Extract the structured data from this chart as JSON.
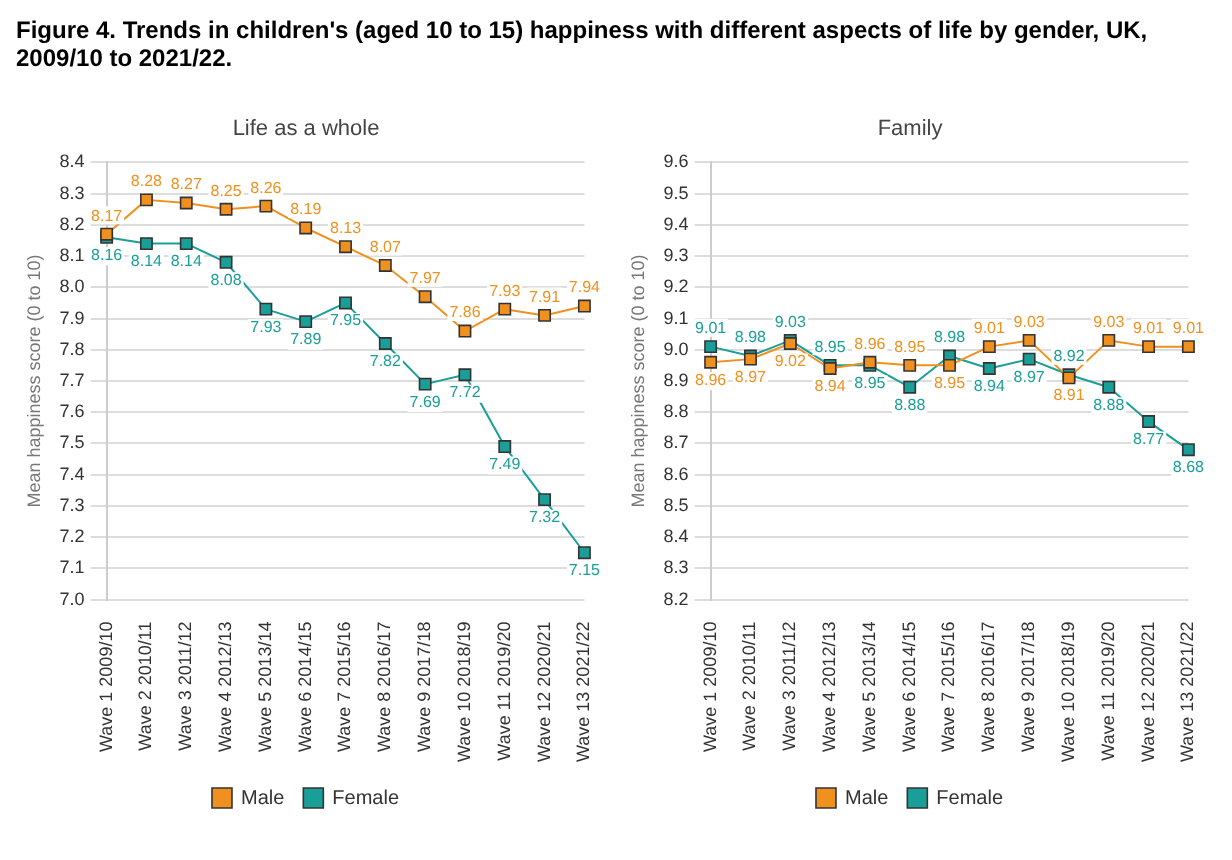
{
  "chart_data": [
    {
      "type": "line",
      "title": "Figure 4. Trends in children's (aged 10 to 15) happiness with different aspects of life by gender, UK, 2009/10 to 2021/22.",
      "subtitle": "Life as a whole",
      "ylabel": "Mean happiness score (0 to 10)",
      "categories": [
        "Wave 1 2009/10",
        "Wave 2 2010/11",
        "Wave 3 2011/12",
        "Wave 4 2012/13",
        "Wave 5 2013/14",
        "Wave 6 2014/15",
        "Wave 7 2015/16",
        "Wave 8 2016/17",
        "Wave 9 2017/18",
        "Wave 10 2018/19",
        "Wave 11 2019/20",
        "Wave 12 2020/21",
        "Wave 13 2021/22"
      ],
      "series": [
        {
          "name": "Male",
          "color": "#f0901e",
          "values": [
            8.17,
            8.28,
            8.27,
            8.25,
            8.26,
            8.19,
            8.13,
            8.07,
            7.97,
            7.86,
            7.93,
            7.91,
            7.94
          ]
        },
        {
          "name": "Female",
          "color": "#1a9e98",
          "values": [
            8.16,
            8.14,
            8.14,
            8.08,
            7.93,
            7.89,
            7.95,
            7.82,
            7.69,
            7.72,
            7.49,
            7.32,
            7.15
          ]
        }
      ],
      "ylim": [
        7.0,
        8.4
      ],
      "yticks": [
        "7.0",
        "7.1",
        "7.2",
        "7.3",
        "7.4",
        "7.5",
        "7.6",
        "7.7",
        "7.8",
        "7.9",
        "8.0",
        "8.1",
        "8.2",
        "8.3",
        "8.4"
      ],
      "grid": "y",
      "legend": "bottom",
      "marker": "square",
      "data_labels": true
    },
    {
      "type": "line",
      "subtitle": "Family",
      "ylabel": "Mean happiness score (0 to 10)",
      "categories": [
        "Wave 1 2009/10",
        "Wave 2 2010/11",
        "Wave 3 2011/12",
        "Wave 4 2012/13",
        "Wave 5 2013/14",
        "Wave 6 2014/15",
        "Wave 7 2015/16",
        "Wave 8 2016/17",
        "Wave 9 2017/18",
        "Wave 10 2018/19",
        "Wave 11 2019/20",
        "Wave 12 2020/21",
        "Wave 13 2021/22"
      ],
      "series": [
        {
          "name": "Male",
          "color": "#f0901e",
          "values": [
            8.96,
            8.97,
            9.02,
            8.94,
            8.96,
            8.95,
            8.95,
            9.01,
            9.03,
            8.91,
            9.03,
            9.01,
            9.01
          ]
        },
        {
          "name": "Female",
          "color": "#1a9e98",
          "values": [
            9.01,
            8.98,
            9.03,
            8.95,
            8.95,
            8.88,
            8.98,
            8.94,
            8.97,
            8.92,
            8.88,
            8.77,
            8.68
          ]
        }
      ],
      "ylim": [
        8.2,
        9.6
      ],
      "yticks": [
        "8.2",
        "8.3",
        "8.4",
        "8.5",
        "8.6",
        "8.7",
        "8.8",
        "8.9",
        "9.0",
        "9.1",
        "9.2",
        "9.3",
        "9.4",
        "9.5",
        "9.6"
      ],
      "grid": "y",
      "legend": "bottom",
      "marker": "square",
      "data_labels": true
    }
  ]
}
